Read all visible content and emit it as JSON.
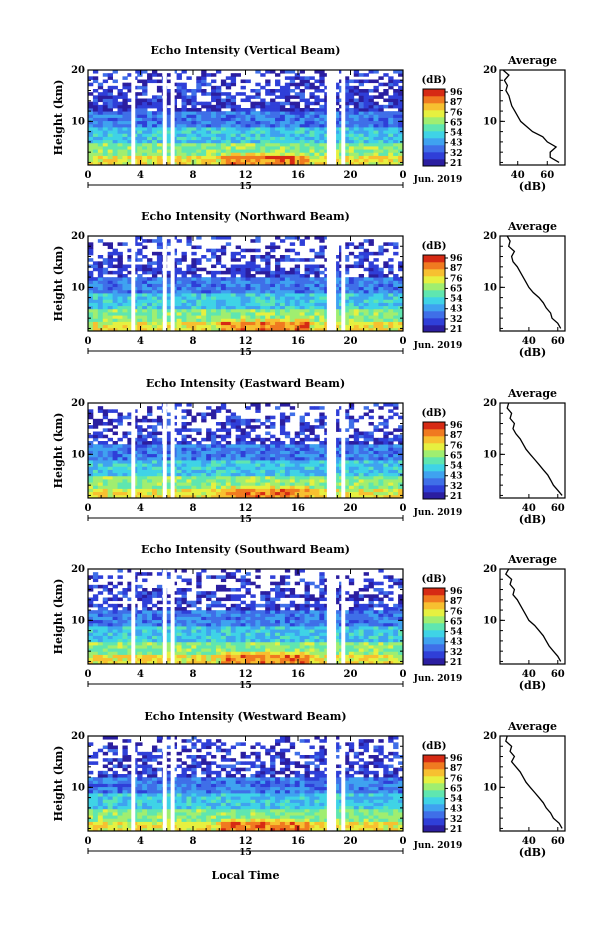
{
  "figure": {
    "xlabel": "Local Time",
    "date_label": "Jun. 2019",
    "day_label": "15"
  },
  "colorbar": {
    "unit_label": "(dB)",
    "ticks": [
      "96",
      "87",
      "76",
      "65",
      "54",
      "43",
      "32",
      "21"
    ],
    "colors": [
      "#2b1ea0",
      "#2f3fd8",
      "#3f6fe8",
      "#3fa2f0",
      "#3fd3e6",
      "#5fe6b0",
      "#a0ee70",
      "#e6f040",
      "#f7c030",
      "#f07a20",
      "#d62a14"
    ]
  },
  "chart_data": [
    {
      "type": "heatmap",
      "title": "Echo Intensity (Vertical Beam)",
      "ylabel": "Height (km)",
      "x_ticks": [
        "0",
        "4",
        "8",
        "12",
        "16",
        "20",
        "0"
      ],
      "y_ticks": [
        "10",
        "20"
      ],
      "xlim": [
        0,
        24
      ],
      "ylim": [
        1.5,
        20
      ],
      "value_range_dB": [
        21,
        96
      ],
      "data_gaps_hours": [
        [
          3.3,
          3.6
        ],
        [
          5.7,
          6.0
        ],
        [
          6.3,
          6.6
        ],
        [
          18.2,
          18.9
        ],
        [
          19.3,
          19.6
        ]
      ],
      "strong_layer_km": [
        1.5,
        6
      ],
      "profile": {
        "title": "Average",
        "xlabel": "(dB)",
        "x_ticks": [
          "40",
          "60"
        ],
        "xlim": [
          28,
          72
        ],
        "ylim": [
          1.5,
          20
        ],
        "height_km": [
          2,
          3,
          4,
          5,
          6,
          7,
          8,
          9,
          10,
          11,
          12,
          13,
          14,
          15,
          16,
          17,
          18,
          19,
          20
        ],
        "mean_dB": [
          68,
          62,
          62,
          66,
          60,
          57,
          50,
          46,
          42,
          40,
          38,
          36,
          35,
          34,
          32,
          33,
          31,
          34,
          30
        ]
      }
    },
    {
      "type": "heatmap",
      "title": "Echo Intensity (Northward Beam)",
      "ylabel": "Height (km)",
      "x_ticks": [
        "0",
        "4",
        "8",
        "12",
        "16",
        "20",
        "0"
      ],
      "y_ticks": [
        "10",
        "20"
      ],
      "xlim": [
        0,
        24
      ],
      "ylim": [
        1.5,
        20
      ],
      "value_range_dB": [
        21,
        96
      ],
      "data_gaps_hours": [
        [
          3.3,
          3.6
        ],
        [
          5.7,
          6.0
        ],
        [
          6.3,
          6.6
        ],
        [
          18.2,
          18.9
        ],
        [
          19.3,
          19.6
        ]
      ],
      "strong_layer_km": [
        1.5,
        6
      ],
      "profile": {
        "title": "Average",
        "xlabel": "(dB)",
        "x_ticks": [
          "40",
          "60"
        ],
        "xlim": [
          20,
          65
        ],
        "ylim": [
          1.5,
          20
        ],
        "height_km": [
          2,
          3,
          4,
          5,
          6,
          7,
          8,
          9,
          10,
          11,
          12,
          13,
          14,
          15,
          16,
          17,
          18,
          19,
          20
        ],
        "mean_dB": [
          62,
          60,
          56,
          55,
          52,
          50,
          47,
          43,
          40,
          38,
          36,
          34,
          32,
          29,
          28,
          30,
          26,
          27,
          25
        ]
      }
    },
    {
      "type": "heatmap",
      "title": "Echo Intensity (Eastward Beam)",
      "ylabel": "Height (km)",
      "x_ticks": [
        "0",
        "4",
        "8",
        "12",
        "16",
        "20",
        "0"
      ],
      "y_ticks": [
        "10",
        "20"
      ],
      "xlim": [
        0,
        24
      ],
      "ylim": [
        1.5,
        20
      ],
      "value_range_dB": [
        21,
        96
      ],
      "data_gaps_hours": [
        [
          3.3,
          3.6
        ],
        [
          5.7,
          6.0
        ],
        [
          6.3,
          6.6
        ],
        [
          18.2,
          18.9
        ],
        [
          19.3,
          19.6
        ]
      ],
      "strong_layer_km": [
        1.5,
        6
      ],
      "profile": {
        "title": "Average",
        "xlabel": "(dB)",
        "x_ticks": [
          "40",
          "60"
        ],
        "xlim": [
          20,
          65
        ],
        "ylim": [
          1.5,
          20
        ],
        "height_km": [
          2,
          3,
          4,
          5,
          6,
          7,
          8,
          9,
          10,
          11,
          12,
          13,
          14,
          15,
          16,
          17,
          18,
          19,
          20
        ],
        "mean_dB": [
          63,
          60,
          57,
          55,
          53,
          50,
          47,
          44,
          41,
          38,
          36,
          34,
          31,
          29,
          30,
          27,
          28,
          25,
          26
        ]
      }
    },
    {
      "type": "heatmap",
      "title": "Echo Intensity (Southward Beam)",
      "ylabel": "Height (km)",
      "x_ticks": [
        "0",
        "4",
        "8",
        "12",
        "16",
        "20",
        "0"
      ],
      "y_ticks": [
        "10",
        "20"
      ],
      "xlim": [
        0,
        24
      ],
      "ylim": [
        1.5,
        20
      ],
      "value_range_dB": [
        21,
        96
      ],
      "data_gaps_hours": [
        [
          3.3,
          3.6
        ],
        [
          5.7,
          6.0
        ],
        [
          6.3,
          6.6
        ],
        [
          18.2,
          18.9
        ],
        [
          19.3,
          19.6
        ]
      ],
      "strong_layer_km": [
        1.5,
        6
      ],
      "profile": {
        "title": "Average",
        "xlabel": "(dB)",
        "x_ticks": [
          "40",
          "60"
        ],
        "xlim": [
          20,
          65
        ],
        "ylim": [
          1.5,
          20
        ],
        "height_km": [
          2,
          3,
          4,
          5,
          6,
          7,
          8,
          9,
          10,
          11,
          12,
          13,
          14,
          15,
          16,
          17,
          18,
          19,
          20
        ],
        "mean_dB": [
          62,
          60,
          57,
          54,
          52,
          50,
          47,
          44,
          40,
          38,
          36,
          34,
          32,
          29,
          30,
          27,
          28,
          24,
          26
        ]
      }
    },
    {
      "type": "heatmap",
      "title": "Echo Intensity (Westward Beam)",
      "ylabel": "Height (km)",
      "x_ticks": [
        "0",
        "4",
        "8",
        "12",
        "16",
        "20",
        "0"
      ],
      "y_ticks": [
        "10",
        "20"
      ],
      "xlim": [
        0,
        24
      ],
      "ylim": [
        1.5,
        20
      ],
      "value_range_dB": [
        21,
        96
      ],
      "data_gaps_hours": [
        [
          3.3,
          3.6
        ],
        [
          5.7,
          6.0
        ],
        [
          6.3,
          6.6
        ],
        [
          18.2,
          18.9
        ],
        [
          19.3,
          19.6
        ]
      ],
      "strong_layer_km": [
        1.5,
        6
      ],
      "profile": {
        "title": "Average",
        "xlabel": "(dB)",
        "x_ticks": [
          "40",
          "60"
        ],
        "xlim": [
          20,
          65
        ],
        "ylim": [
          1.5,
          20
        ],
        "height_km": [
          2,
          3,
          4,
          5,
          6,
          7,
          8,
          9,
          10,
          11,
          12,
          13,
          14,
          15,
          16,
          17,
          18,
          19,
          20
        ],
        "mean_dB": [
          63,
          61,
          57,
          55,
          52,
          50,
          47,
          44,
          41,
          38,
          36,
          34,
          31,
          28,
          30,
          27,
          28,
          24,
          25
        ]
      }
    }
  ]
}
